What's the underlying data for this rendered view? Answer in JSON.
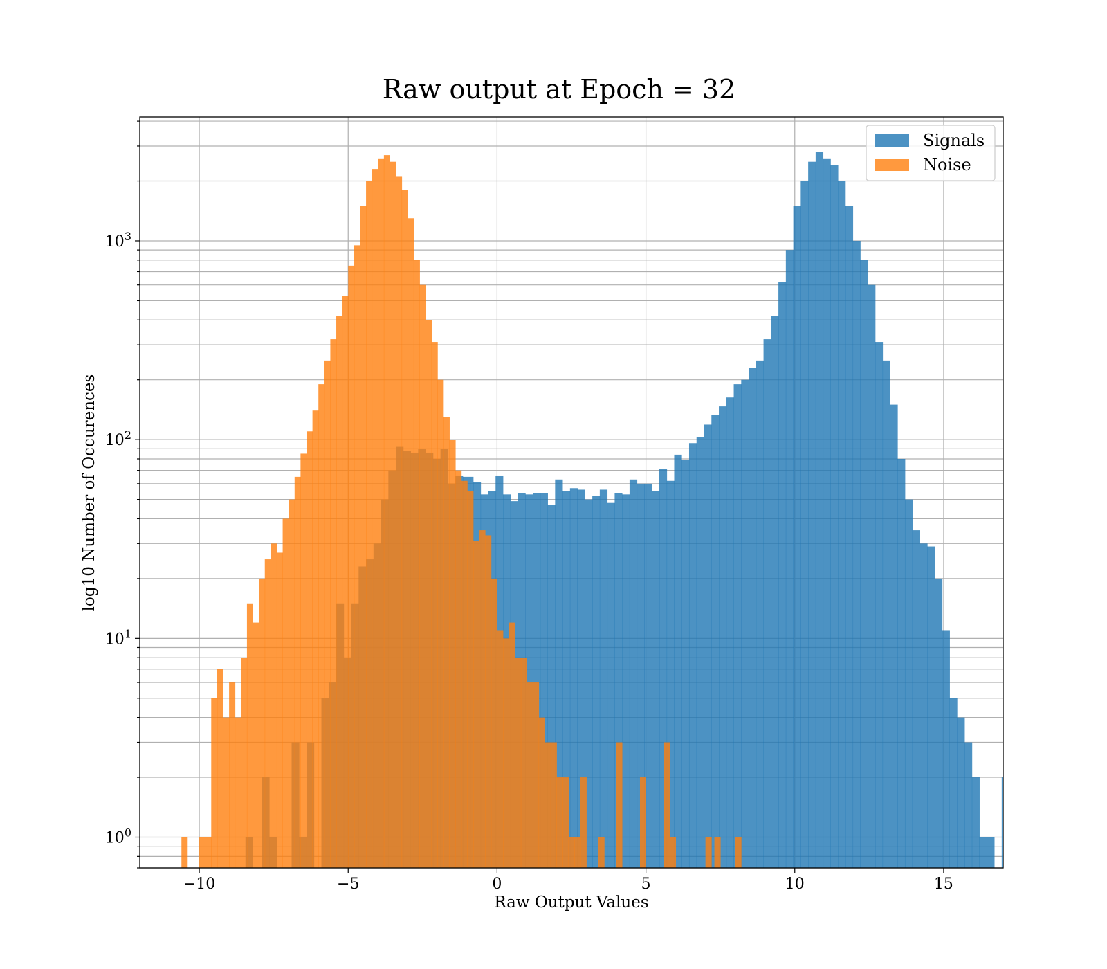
{
  "chart_data": {
    "type": "histogram",
    "title": "Raw output at Epoch = 32",
    "xlabel": "Raw Output Values",
    "ylabel": "log10 Number of Occurences",
    "y_scale": "log",
    "xlim": [
      -12,
      17
    ],
    "ylim": [
      0.7,
      4200
    ],
    "x_ticks": [
      {
        "value": -10,
        "label": "−10"
      },
      {
        "value": -5,
        "label": "−5"
      },
      {
        "value": 0,
        "label": "0"
      },
      {
        "value": 5,
        "label": "5"
      },
      {
        "value": 10,
        "label": "10"
      },
      {
        "value": 15,
        "label": "15"
      }
    ],
    "y_ticks": [
      {
        "value": 1,
        "base": "10",
        "exp": "0"
      },
      {
        "value": 10,
        "base": "10",
        "exp": "1"
      },
      {
        "value": 100,
        "base": "10",
        "exp": "2"
      },
      {
        "value": 1000,
        "base": "10",
        "exp": "3"
      }
    ],
    "grid": true,
    "legend_position": "top-right",
    "series": [
      {
        "name": "Signals",
        "color": "#1f77b4",
        "opacity": 0.8,
        "bins": [
          [
            -8.45,
            -8.2,
            1
          ],
          [
            -7.9,
            -7.65,
            2
          ],
          [
            -7.65,
            -7.4,
            1
          ],
          [
            -6.9,
            -6.65,
            3
          ],
          [
            -6.65,
            -6.4,
            1
          ],
          [
            -6.4,
            -6.15,
            3
          ],
          [
            -5.9,
            -5.65,
            5
          ],
          [
            -5.65,
            -5.4,
            6
          ],
          [
            -5.4,
            -5.15,
            15
          ],
          [
            -5.15,
            -4.9,
            8
          ],
          [
            -4.9,
            -4.65,
            15
          ],
          [
            -4.65,
            -4.4,
            23
          ],
          [
            -4.4,
            -4.15,
            25
          ],
          [
            -4.15,
            -3.9,
            30
          ],
          [
            -3.9,
            -3.65,
            50
          ],
          [
            -3.65,
            -3.4,
            70
          ],
          [
            -3.4,
            -3.15,
            92
          ],
          [
            -3.15,
            -2.9,
            88
          ],
          [
            -2.9,
            -2.65,
            86
          ],
          [
            -2.65,
            -2.4,
            90
          ],
          [
            -2.4,
            -2.15,
            86
          ],
          [
            -2.15,
            -1.9,
            80
          ],
          [
            -1.9,
            -1.65,
            90
          ],
          [
            -1.65,
            -1.4,
            60
          ],
          [
            -1.4,
            -1.15,
            66
          ],
          [
            -1.15,
            -0.9,
            65
          ],
          [
            -0.9,
            -0.8,
            65
          ],
          [
            -0.8,
            -0.55,
            61
          ],
          [
            -0.55,
            -0.3,
            53
          ],
          [
            -0.3,
            -0.05,
            55
          ],
          [
            -0.05,
            0.2,
            66
          ],
          [
            0.2,
            0.45,
            53
          ],
          [
            0.45,
            0.7,
            49
          ],
          [
            0.7,
            0.95,
            54
          ],
          [
            0.95,
            1.2,
            53
          ],
          [
            1.2,
            1.45,
            54
          ],
          [
            1.45,
            1.7,
            54
          ],
          [
            1.7,
            1.95,
            47
          ],
          [
            1.95,
            2.2,
            63
          ],
          [
            2.2,
            2.45,
            55
          ],
          [
            2.45,
            2.7,
            57
          ],
          [
            2.7,
            2.95,
            56
          ],
          [
            2.95,
            3.2,
            50
          ],
          [
            3.2,
            3.45,
            52
          ],
          [
            3.45,
            3.7,
            56
          ],
          [
            3.7,
            3.95,
            48
          ],
          [
            3.95,
            4.2,
            54
          ],
          [
            4.2,
            4.45,
            53
          ],
          [
            4.45,
            4.7,
            63
          ],
          [
            4.7,
            4.95,
            60
          ],
          [
            4.95,
            5.2,
            60
          ],
          [
            5.2,
            5.45,
            55
          ],
          [
            5.45,
            5.7,
            71
          ],
          [
            5.7,
            5.95,
            62
          ],
          [
            5.95,
            6.2,
            84
          ],
          [
            6.2,
            6.45,
            79
          ],
          [
            6.45,
            6.7,
            96
          ],
          [
            6.7,
            6.95,
            103
          ],
          [
            6.95,
            7.2,
            119
          ],
          [
            7.2,
            7.45,
            133
          ],
          [
            7.45,
            7.7,
            147
          ],
          [
            7.7,
            7.95,
            163
          ],
          [
            7.95,
            8.2,
            190
          ],
          [
            8.2,
            8.45,
            200
          ],
          [
            8.45,
            8.7,
            230
          ],
          [
            8.7,
            8.95,
            250
          ],
          [
            8.95,
            9.2,
            320
          ],
          [
            9.2,
            9.45,
            420
          ],
          [
            9.45,
            9.7,
            620
          ],
          [
            9.7,
            9.95,
            900
          ],
          [
            9.95,
            10.2,
            1500
          ],
          [
            10.2,
            10.45,
            2000
          ],
          [
            10.45,
            10.7,
            2500
          ],
          [
            10.7,
            10.95,
            2800
          ],
          [
            10.95,
            11.2,
            2600
          ],
          [
            11.2,
            11.45,
            2400
          ],
          [
            11.45,
            11.7,
            2000
          ],
          [
            11.7,
            11.95,
            1500
          ],
          [
            11.95,
            12.2,
            1000
          ],
          [
            12.2,
            12.45,
            800
          ],
          [
            12.45,
            12.7,
            600
          ],
          [
            12.7,
            12.95,
            310
          ],
          [
            12.95,
            13.2,
            250
          ],
          [
            13.2,
            13.45,
            150
          ],
          [
            13.45,
            13.7,
            80
          ],
          [
            13.7,
            13.95,
            50
          ],
          [
            13.95,
            14.2,
            35
          ],
          [
            14.2,
            14.45,
            30
          ],
          [
            14.45,
            14.7,
            29
          ],
          [
            14.7,
            14.95,
            20
          ],
          [
            14.95,
            15.2,
            11
          ],
          [
            15.2,
            15.45,
            5
          ],
          [
            15.45,
            15.7,
            4
          ],
          [
            15.7,
            15.95,
            3
          ],
          [
            15.95,
            16.2,
            2
          ],
          [
            16.2,
            16.45,
            1
          ],
          [
            16.45,
            16.7,
            1
          ],
          [
            16.95,
            17.0,
            2
          ]
        ]
      },
      {
        "name": "Noise",
        "color": "#ff7f0e",
        "opacity": 0.8,
        "bins": [
          [
            -10.6,
            -10.4,
            1
          ],
          [
            -10.0,
            -9.6,
            1
          ],
          [
            -9.6,
            -9.4,
            5
          ],
          [
            -9.4,
            -9.2,
            7
          ],
          [
            -9.2,
            -9.0,
            4
          ],
          [
            -9.0,
            -8.8,
            6
          ],
          [
            -8.8,
            -8.6,
            4
          ],
          [
            -8.6,
            -8.4,
            8
          ],
          [
            -8.4,
            -8.2,
            15
          ],
          [
            -8.2,
            -8.0,
            12
          ],
          [
            -8.0,
            -7.8,
            20
          ],
          [
            -7.8,
            -7.6,
            25
          ],
          [
            -7.6,
            -7.4,
            30
          ],
          [
            -7.4,
            -7.2,
            27
          ],
          [
            -7.2,
            -7.0,
            40
          ],
          [
            -7.0,
            -6.8,
            50
          ],
          [
            -6.8,
            -6.6,
            65
          ],
          [
            -6.6,
            -6.4,
            85
          ],
          [
            -6.4,
            -6.2,
            110
          ],
          [
            -6.2,
            -6.0,
            140
          ],
          [
            -6.0,
            -5.8,
            190
          ],
          [
            -5.8,
            -5.6,
            250
          ],
          [
            -5.6,
            -5.4,
            320
          ],
          [
            -5.4,
            -5.2,
            420
          ],
          [
            -5.2,
            -5.0,
            530
          ],
          [
            -5.0,
            -4.8,
            750
          ],
          [
            -4.8,
            -4.6,
            950
          ],
          [
            -4.6,
            -4.4,
            1500
          ],
          [
            -4.4,
            -4.2,
            2000
          ],
          [
            -4.2,
            -4.0,
            2300
          ],
          [
            -4.0,
            -3.8,
            2600
          ],
          [
            -3.8,
            -3.6,
            2700
          ],
          [
            -3.6,
            -3.4,
            2500
          ],
          [
            -3.4,
            -3.2,
            2100
          ],
          [
            -3.2,
            -3.0,
            1800
          ],
          [
            -3.0,
            -2.8,
            1300
          ],
          [
            -2.8,
            -2.6,
            800
          ],
          [
            -2.6,
            -2.4,
            600
          ],
          [
            -2.4,
            -2.2,
            400
          ],
          [
            -2.2,
            -2.0,
            310
          ],
          [
            -2.0,
            -1.8,
            200
          ],
          [
            -1.8,
            -1.6,
            130
          ],
          [
            -1.6,
            -1.4,
            100
          ],
          [
            -1.4,
            -1.2,
            70
          ],
          [
            -1.2,
            -1.0,
            62
          ],
          [
            -1.0,
            -0.8,
            55
          ],
          [
            -0.8,
            -0.6,
            31
          ],
          [
            -0.6,
            -0.4,
            35
          ],
          [
            -0.4,
            -0.2,
            33
          ],
          [
            -0.2,
            0.0,
            20
          ],
          [
            0.0,
            0.2,
            11
          ],
          [
            0.2,
            0.4,
            10
          ],
          [
            0.4,
            0.6,
            12
          ],
          [
            0.6,
            0.8,
            8
          ],
          [
            0.8,
            1.0,
            8
          ],
          [
            1.0,
            1.2,
            6
          ],
          [
            1.2,
            1.4,
            6
          ],
          [
            1.4,
            1.6,
            4
          ],
          [
            1.6,
            1.8,
            3
          ],
          [
            1.8,
            2.0,
            3
          ],
          [
            2.0,
            2.2,
            2
          ],
          [
            2.2,
            2.4,
            2
          ],
          [
            2.4,
            2.6,
            1
          ],
          [
            2.6,
            2.8,
            1
          ],
          [
            2.8,
            3.0,
            2
          ],
          [
            3.4,
            3.6,
            1
          ],
          [
            4.0,
            4.2,
            3
          ],
          [
            4.8,
            5.0,
            2
          ],
          [
            5.6,
            5.8,
            3
          ],
          [
            5.8,
            6.0,
            1
          ],
          [
            7.0,
            7.2,
            1
          ],
          [
            7.3,
            7.5,
            1
          ],
          [
            8.0,
            8.2,
            1
          ]
        ]
      }
    ]
  }
}
